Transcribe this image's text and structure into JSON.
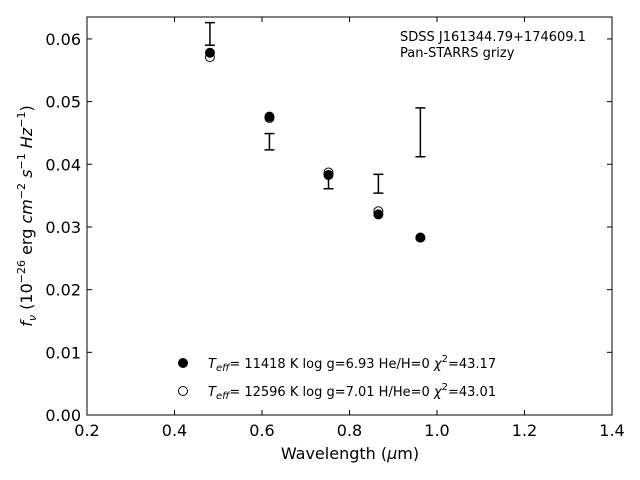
{
  "chart_data": {
    "type": "scatter",
    "title": "",
    "annotation": {
      "line1": "SDSS J161344.79+174609.1",
      "line2": "Pan-STARRS grizy"
    },
    "xlabel": "Wavelength (μm)",
    "ylabel": "fν (10⁻²⁶ erg cm⁻² s⁻¹ Hz⁻¹)",
    "xlim": [
      0.2,
      1.4
    ],
    "ylim": [
      0.0,
      0.0635
    ],
    "xticks": [
      0.2,
      0.4,
      0.6,
      0.8,
      1.0,
      1.2,
      1.4
    ],
    "xtick_labels": [
      "0.2",
      "0.4",
      "0.6",
      "0.8",
      "1.0",
      "1.2",
      "1.4"
    ],
    "yticks": [
      0.0,
      0.01,
      0.02,
      0.03,
      0.04,
      0.05,
      0.06
    ],
    "ytick_labels": [
      "0.00",
      "0.01",
      "0.02",
      "0.03",
      "0.04",
      "0.05",
      "0.06"
    ],
    "observed": {
      "x": [
        0.481,
        0.617,
        0.752,
        0.866,
        0.962
      ],
      "y": [
        0.0608,
        0.0436,
        0.0373,
        0.0369,
        0.0451
      ],
      "err": [
        0.0018,
        0.0013,
        0.0012,
        0.0015,
        0.0039
      ]
    },
    "series": [
      {
        "marker": "filled",
        "x": [
          0.481,
          0.617,
          0.752,
          0.866,
          0.962
        ],
        "y": [
          0.0578,
          0.0476,
          0.0383,
          0.032,
          0.0283
        ]
      },
      {
        "marker": "open",
        "x": [
          0.481,
          0.617,
          0.752,
          0.866,
          0.962
        ],
        "y": [
          0.0571,
          0.0474,
          0.0387,
          0.0325,
          0.0283
        ]
      }
    ],
    "legend": {
      "placement": "lower-center",
      "entries": [
        {
          "marker": "filled",
          "text": "Teff= 11418 K  log g=6.93  He/H=0  χ²=43.17"
        },
        {
          "marker": "open",
          "text": "Teff= 12596 K  log g=7.01  H/He=0  χ²=43.01"
        }
      ]
    },
    "grid": false
  }
}
